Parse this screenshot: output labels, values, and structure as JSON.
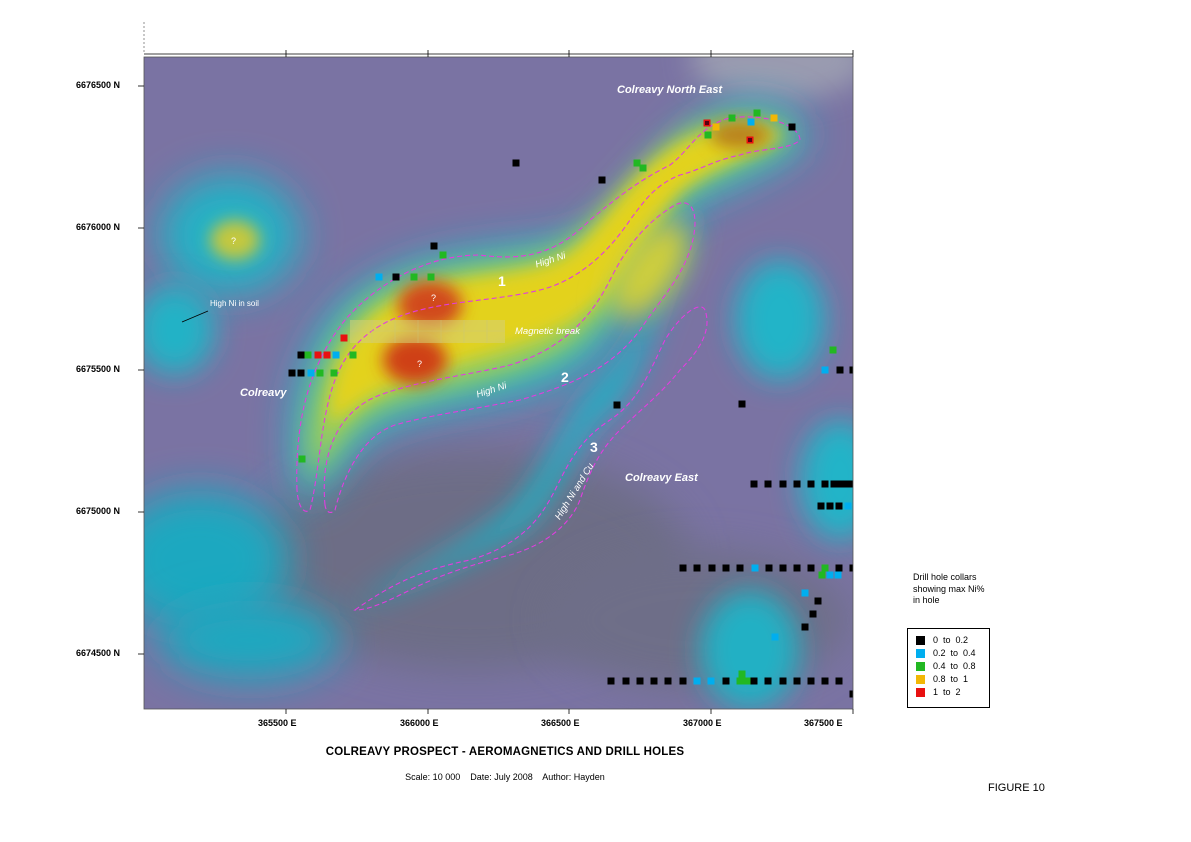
{
  "map": {
    "title": "COLREAVY PROSPECT - AEROMAGNETICS AND DRILL HOLES",
    "subtitle": "Scale: 10 000    Date: July 2008    Author: Hayden",
    "figure_label": "FIGURE 10",
    "y_ticks": [
      "6676500 N",
      "6676000 N",
      "6675500 N",
      "6675000 N",
      "6674500 N"
    ],
    "x_ticks": [
      "365500 E",
      "366000 E",
      "366500 E",
      "367000 E",
      "367500 E"
    ],
    "area_labels": {
      "colreavy": "Colreavy",
      "colreavy_north_east": "Colreavy North East",
      "colreavy_east": "Colreavy East"
    },
    "anomalies": [
      {
        "number": "1",
        "note": "High Ni"
      },
      {
        "number": "2",
        "note": "High Ni"
      },
      {
        "number": "3",
        "note": "High Ni and Cu"
      }
    ],
    "magnetic_break": "Magnetic break",
    "soil_note": "High Ni in soil",
    "question_mark": "?"
  },
  "legend": {
    "title": "Drill hole collars showing max Ni% in hole",
    "items": [
      {
        "label": "0  to  0.2",
        "color": "#000000"
      },
      {
        "label": "0.2  to  0.4",
        "color": "#00aeef"
      },
      {
        "label": "0.4  to  0.8",
        "color": "#22b822"
      },
      {
        "label": "0.8  to  1",
        "color": "#f2b705"
      },
      {
        "label": "1  to  2",
        "color": "#e81010"
      }
    ]
  },
  "colors": {
    "background_low": "#7d74a6",
    "mid": "#1fb6c9",
    "high": "#e8d21a",
    "peak": "#d23a18",
    "anomaly_outline": "#e23ce0"
  }
}
